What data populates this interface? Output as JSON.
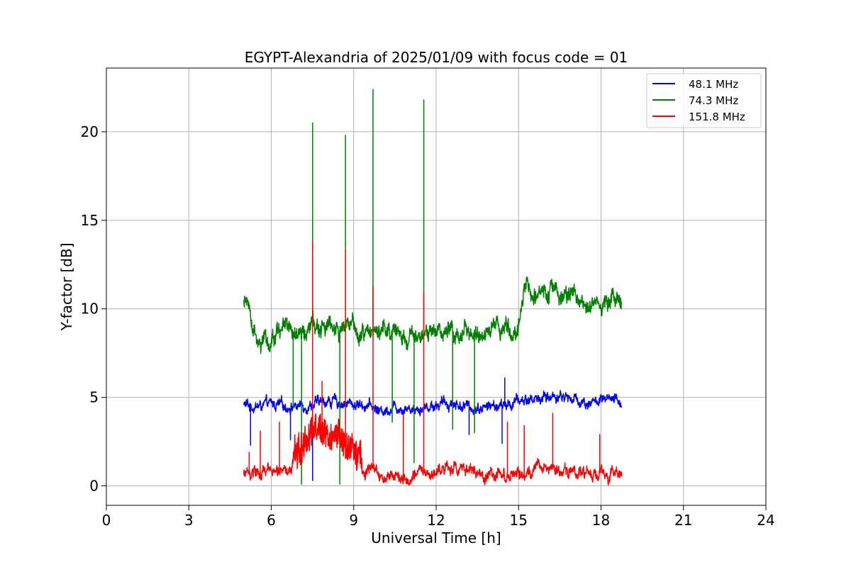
{
  "chart_data": {
    "type": "line",
    "title": "EGYPT-Alexandria of 2025/01/09 with focus code = 01",
    "xlabel": "Universal Time [h]",
    "ylabel": "Y-factor [dB]",
    "xlim": [
      0,
      24
    ],
    "ylim": [
      -1.1,
      23.6
    ],
    "xticks": [
      0,
      3,
      6,
      9,
      12,
      15,
      18,
      21,
      24
    ],
    "yticks": [
      0,
      5,
      10,
      15,
      20
    ],
    "xtick_labels": [
      "0",
      "3",
      "6",
      "9",
      "12",
      "15",
      "18",
      "21",
      "24"
    ],
    "ytick_labels": [
      "0",
      "5",
      "10",
      "15",
      "20"
    ],
    "grid": true,
    "legend_position": "top-right",
    "x_range_of_data": [
      5.0,
      18.75
    ],
    "series": [
      {
        "name": "48.1 MHz",
        "color": "#0000ff",
        "x": [
          5.0,
          5.3,
          5.6,
          6.0,
          6.5,
          7.0,
          7.5,
          8.0,
          8.5,
          9.0,
          9.5,
          10.0,
          10.5,
          11.0,
          11.5,
          12.0,
          12.5,
          13.0,
          13.5,
          14.0,
          14.5,
          15.0,
          15.5,
          16.0,
          16.5,
          17.0,
          17.5,
          18.0,
          18.5,
          18.75
        ],
        "values": [
          4.6,
          4.5,
          4.5,
          4.6,
          4.5,
          4.5,
          4.6,
          4.8,
          4.7,
          4.6,
          4.6,
          4.2,
          4.5,
          4.4,
          4.4,
          4.6,
          4.7,
          4.5,
          4.4,
          4.5,
          4.5,
          4.8,
          4.9,
          5.0,
          5.1,
          4.9,
          4.7,
          4.8,
          4.8,
          4.7
        ],
        "spikes": [
          [
            5.25,
            2.3
          ],
          [
            6.7,
            2.6
          ],
          [
            7.5,
            0.3
          ],
          [
            10.8,
            2.5
          ],
          [
            13.2,
            2.9
          ],
          [
            14.4,
            2.4
          ],
          [
            14.5,
            6.1
          ]
        ]
      },
      {
        "name": "74.3 MHz",
        "color": "#008000",
        "x": [
          5.0,
          5.2,
          5.5,
          5.8,
          6.0,
          6.5,
          7.0,
          7.5,
          8.0,
          8.5,
          9.0,
          9.5,
          10.0,
          10.5,
          11.0,
          11.5,
          12.0,
          12.5,
          13.0,
          13.5,
          14.0,
          14.5,
          15.0,
          15.2,
          15.5,
          16.0,
          16.5,
          17.0,
          17.5,
          18.0,
          18.5,
          18.75
        ],
        "values": [
          10.3,
          10.2,
          7.7,
          7.8,
          8.4,
          8.8,
          8.6,
          8.9,
          8.9,
          8.8,
          8.9,
          8.7,
          8.7,
          8.5,
          8.4,
          8.4,
          8.6,
          8.7,
          8.6,
          8.6,
          8.7,
          8.9,
          8.8,
          11.1,
          11.0,
          11.0,
          10.8,
          10.5,
          10.3,
          10.5,
          10.5,
          10.3
        ],
        "spikes": [
          [
            7.5,
            20.5
          ],
          [
            8.7,
            19.8
          ],
          [
            9.7,
            22.4
          ],
          [
            11.55,
            21.8
          ],
          [
            7.1,
            0.1
          ],
          [
            8.5,
            0.1
          ],
          [
            11.2,
            1.3
          ],
          [
            6.8,
            4.4
          ],
          [
            10.4,
            3.6
          ],
          [
            12.6,
            3.2
          ],
          [
            13.4,
            3.0
          ]
        ]
      },
      {
        "name": "151.8 MHz",
        "color": "#ff0000",
        "x": [
          5.0,
          5.5,
          6.0,
          6.5,
          7.0,
          7.5,
          8.0,
          8.5,
          9.0,
          9.5,
          10.0,
          10.5,
          11.0,
          11.5,
          12.0,
          12.5,
          13.0,
          13.5,
          14.0,
          14.5,
          15.0,
          15.5,
          16.0,
          16.5,
          17.0,
          17.5,
          18.0,
          18.5,
          18.75
        ],
        "values": [
          0.7,
          0.6,
          0.8,
          0.9,
          1.3,
          2.4,
          2.3,
          1.7,
          1.2,
          0.8,
          0.5,
          0.5,
          0.5,
          0.6,
          0.8,
          0.9,
          0.8,
          0.7,
          0.6,
          0.7,
          0.7,
          0.9,
          0.9,
          0.8,
          0.8,
          0.6,
          0.7,
          0.7,
          0.7
        ],
        "spikes": [
          [
            7.5,
            13.8
          ],
          [
            8.7,
            13.4
          ],
          [
            9.7,
            11.3
          ],
          [
            11.55,
            11.0
          ],
          [
            5.2,
            1.9
          ],
          [
            5.6,
            3.1
          ],
          [
            6.3,
            3.6
          ],
          [
            7.85,
            5.9
          ],
          [
            10.8,
            4.0
          ],
          [
            14.6,
            3.6
          ],
          [
            15.2,
            3.4
          ],
          [
            16.25,
            4.1
          ],
          [
            17.95,
            2.9
          ]
        ]
      }
    ]
  }
}
